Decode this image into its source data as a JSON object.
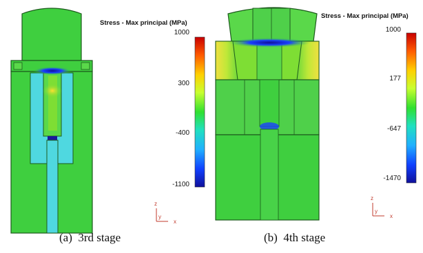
{
  "panels": [
    {
      "caption": "(a)  3rd stage",
      "legend_title": "Stress - Max principal (MPa)",
      "ticks": [
        "1000",
        "300",
        "-400",
        "-1100"
      ],
      "axes": {
        "z": "z",
        "y": "y",
        "x": "x"
      }
    },
    {
      "caption": "(b)  4th stage",
      "legend_title": "Stress - Max principal (MPa)",
      "ticks": [
        "1000",
        "177",
        "-647",
        "-1470"
      ],
      "axes": {
        "z": "z",
        "y": "y",
        "x": "x"
      }
    }
  ],
  "colors": {
    "body": "#3fcf3f",
    "body_light": "#7ede34",
    "cyan": "#4fd8e0",
    "yellow": "#e8e84a",
    "dark_blue": "#1a1a9a",
    "edge": "#1d5a1d"
  },
  "colorbar_scale": [
    "#c80000",
    "#ff6a00",
    "#ffd000",
    "#c8ff30",
    "#30e030",
    "#20e0c0",
    "#20b0ff",
    "#1040ff",
    "#10109a"
  ]
}
